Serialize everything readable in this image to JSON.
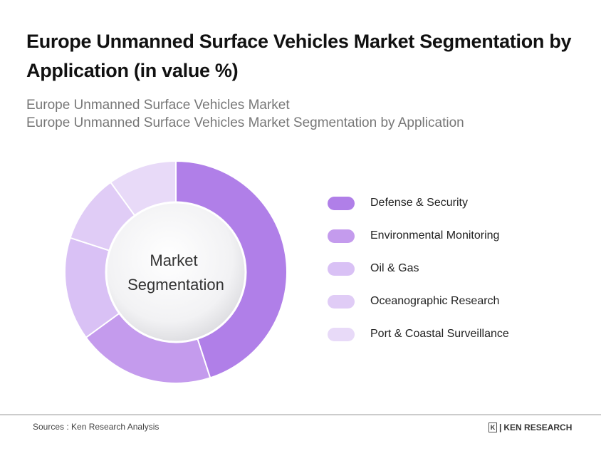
{
  "title": "Europe Unmanned Surface Vehicles Market Segmentation by Application (in value %)",
  "subtitle1": "Europe Unmanned Surface Vehicles Market",
  "subtitle2": "Europe Unmanned Surface Vehicles Market Segmentation by Application",
  "chart_data": {
    "type": "pie",
    "donut": true,
    "center_label": [
      "Market",
      "Segmentation"
    ],
    "categories": [
      "Defense & Security",
      "Environmental Monitoring",
      "Oil & Gas",
      "Oceanographic Research",
      "Port & Coastal Surveillance"
    ],
    "values": [
      45,
      20,
      15,
      10,
      10
    ],
    "colors": [
      "#b07fe8",
      "#c49bed",
      "#d9c1f5",
      "#e0ccf6",
      "#e8daf8"
    ],
    "legend_position": "right"
  },
  "footer": {
    "sources": "Sources : Ken Research Analysis",
    "logo": "KEN RESEARCH"
  }
}
